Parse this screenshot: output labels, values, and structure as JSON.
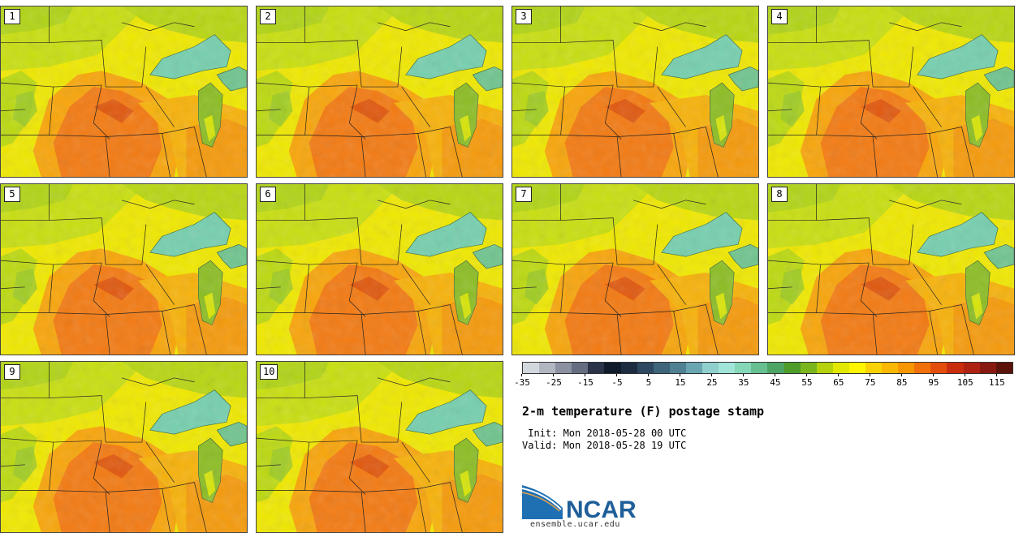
{
  "panels": [
    {
      "label": "1"
    },
    {
      "label": "2"
    },
    {
      "label": "3"
    },
    {
      "label": "4"
    },
    {
      "label": "5"
    },
    {
      "label": "6"
    },
    {
      "label": "7"
    },
    {
      "label": "8"
    },
    {
      "label": "9"
    },
    {
      "label": "10"
    }
  ],
  "colorbar": {
    "colors": [
      "#d3d8df",
      "#b1b6c1",
      "#8b91a1",
      "#676d81",
      "#2a3348",
      "#0f1a2b",
      "#1d2c40",
      "#2d4860",
      "#3e6579",
      "#4f8192",
      "#6aa6b1",
      "#8fcfcd",
      "#a0e5d8",
      "#86d6b8",
      "#68c091",
      "#4ea464",
      "#4e9c2a",
      "#7ab51d",
      "#b6d20d",
      "#e2e802",
      "#fff500",
      "#f8d206",
      "#fbb803",
      "#f79603",
      "#f2700a",
      "#e44e0c",
      "#c92d0e",
      "#ae2212",
      "#881911",
      "#5c1309"
    ],
    "ticks": [
      "-35",
      "-25",
      "-15",
      "-5",
      "5",
      "15",
      "25",
      "35",
      "45",
      "55",
      "65",
      "75",
      "85",
      "95",
      "105",
      "115"
    ]
  },
  "title": "2-m temperature (F) postage stamp",
  "init": " Init: Mon 2018-05-28 00 UTC",
  "valid": "Valid: Mon 2018-05-28 19 UTC",
  "logo": {
    "name": "NCAR",
    "url": "ensemble.ucar.edu",
    "accent": "#1f6fb3"
  }
}
